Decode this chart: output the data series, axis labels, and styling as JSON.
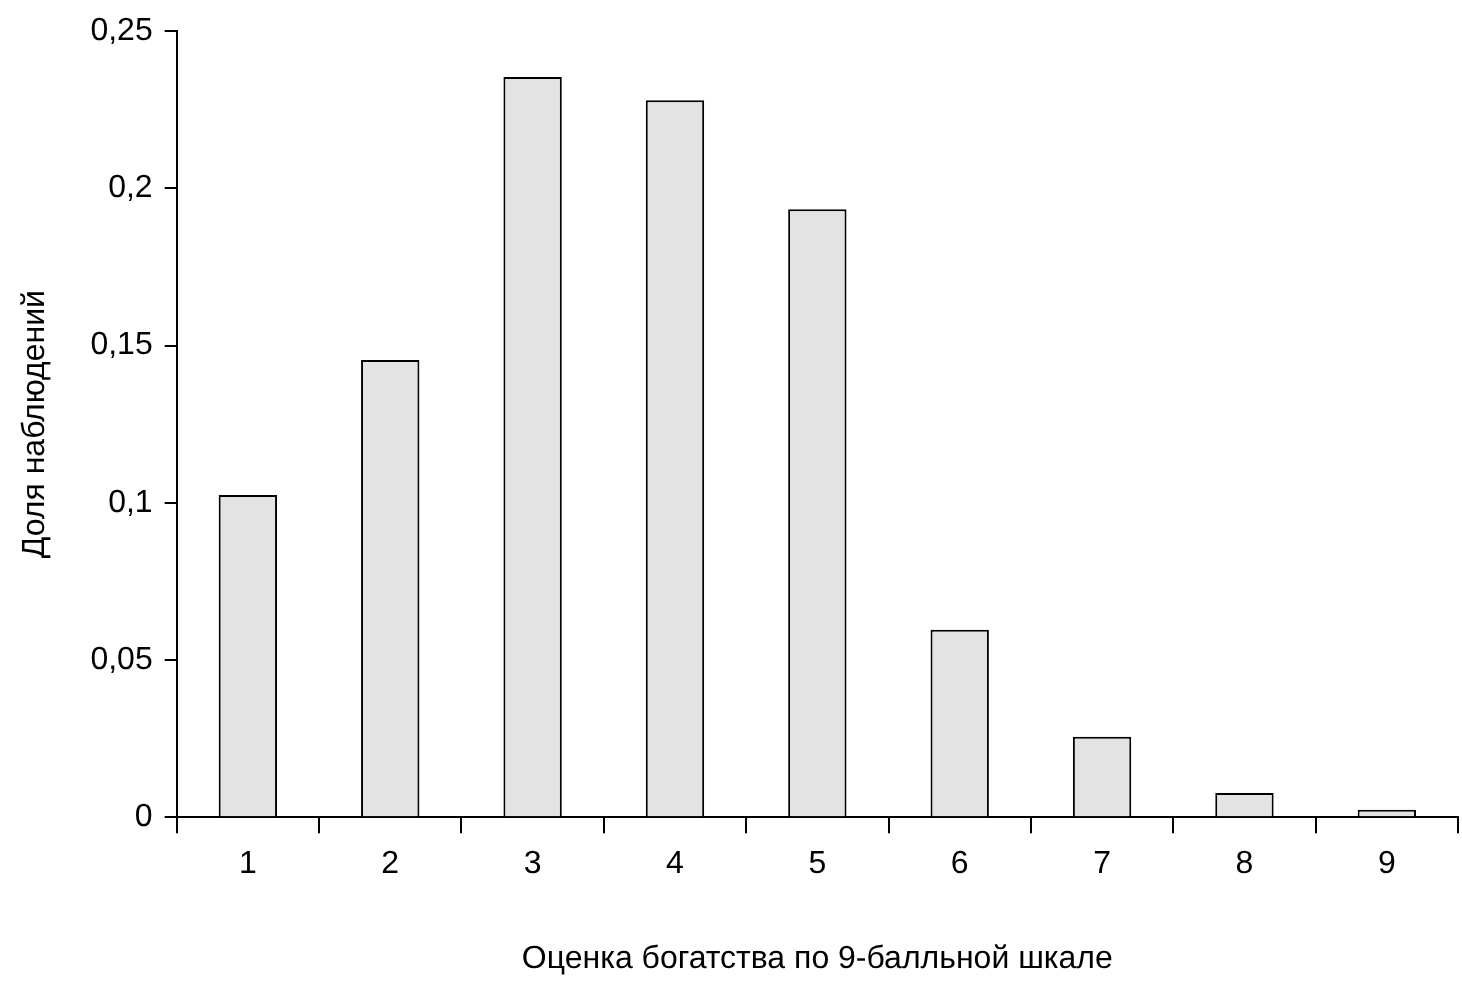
{
  "chart_data": {
    "type": "bar",
    "xlabel": "Оценка богатства по 9-балльной шкале",
    "ylabel": "Доля наблюдений",
    "categories": [
      "1",
      "2",
      "3",
      "4",
      "5",
      "6",
      "7",
      "8",
      "9"
    ],
    "values": [
      0.1025,
      0.1454,
      0.2354,
      0.228,
      0.1934,
      0.0596,
      0.0256,
      0.0077,
      0.0024
    ],
    "color": "#e3e3e3",
    "ylim": [
      0,
      0.25
    ],
    "yticks": [
      0,
      {
        "value": 0.05,
        "label": "0,05"
      },
      {
        "value": 0.1,
        "label": "0,1"
      },
      {
        "value": 0.15,
        "label": "0,15"
      },
      {
        "value": 0.2,
        "label": "0,2"
      },
      {
        "value": 0.25,
        "label": "0,25"
      }
    ],
    "grid": false,
    "legend": false
  }
}
